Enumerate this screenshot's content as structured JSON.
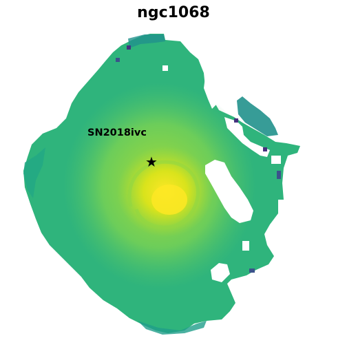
{
  "figure": {
    "title": "ngc1068",
    "supernova_label": "SN2018ivc",
    "marker_icon": "star-icon",
    "colormap": [
      "#440154",
      "#3b528b",
      "#21918c",
      "#5ec962",
      "#bddf26",
      "#fde725"
    ]
  }
}
